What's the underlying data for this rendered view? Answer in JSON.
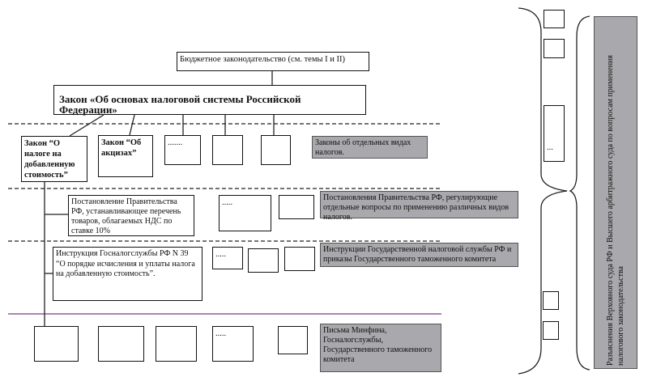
{
  "top_box": "Бюджетное законодательство (см. темы I и II)",
  "main_law": "Закон «Об основах налоговой системы Российской Федерации»",
  "row1": {
    "vat_law": "Закон “О налоге на добавленную стоимость”",
    "excise_law": "Закон “Об акцизах”",
    "dots": ".......",
    "label": "Законы об отдельных видах налогов."
  },
  "row2": {
    "resolution": "Постановление Правительства РФ, устанавливающее перечень товаров, облагаемых НДС по ставке 10%",
    "dots": ".....",
    "label": "Постановления Правительства РФ, регулирующие отдельные вопросы по применению различных видов налогов."
  },
  "row3": {
    "instruction": "Инструкция Госналогслужбы РФ N 39 “О порядке исчисления и уплаты налога на добавленную стоимость”.",
    "dots": ".....",
    "label": "Инструкции Государственной налоговой службы РФ и приказы Государственного таможенного комитета"
  },
  "row4": {
    "dots": ".....",
    "label": "Письма Минфина, Госналогслужбы, Государственного таможенного комитета"
  },
  "right_column": {
    "dots": "...",
    "label": "Разъяснения Верховного суда РФ и Высшего арбитражного суда по вопросам применения налогового законодательства"
  },
  "colors": {
    "label_fill": "#a9a9ad",
    "separator": "#7a3a8a"
  }
}
